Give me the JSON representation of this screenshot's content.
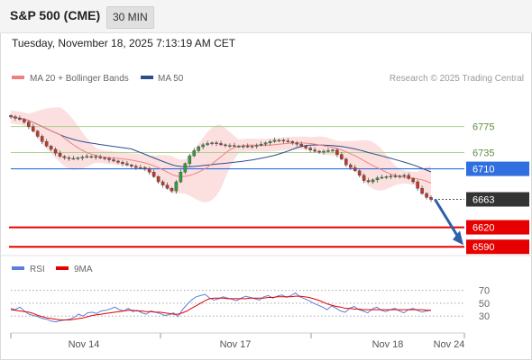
{
  "header": {
    "title": "S&P 500 (CME)",
    "interval": "30 MIN",
    "timestamp": "Tuesday, November 18, 2025 7:13:19 AM CET"
  },
  "legend": {
    "ma20_label": "MA 20 + Bollinger Bands",
    "ma50_label": "MA 50",
    "ma20_color": "#f08080",
    "ma50_color": "#2d4d8c",
    "credit": "Research © 2025 Trading Central"
  },
  "chart_data": [
    {
      "type": "line",
      "name": "price",
      "x_labels": [
        "Nov 14",
        "Nov 17",
        "Nov 18",
        "Nov 24"
      ],
      "ylim": [
        6582,
        6841
      ],
      "close_series": [
        6790,
        6788,
        6786,
        6782,
        6775,
        6768,
        6760,
        6752,
        6745,
        6740,
        6734,
        6729,
        6727,
        6726,
        6726,
        6727,
        6728,
        6729,
        6729,
        6728,
        6727,
        6726,
        6724,
        6722,
        6720,
        6718,
        6716,
        6714,
        6712,
        6712,
        6710,
        6705,
        6698,
        6690,
        6685,
        6680,
        6676,
        6690,
        6705,
        6718,
        6730,
        6738,
        6744,
        6747,
        6749,
        6750,
        6749,
        6747,
        6746,
        6746,
        6745,
        6745,
        6745,
        6744,
        6745,
        6746,
        6748,
        6750,
        6752,
        6754,
        6754,
        6753,
        6752,
        6750,
        6748,
        6745,
        6742,
        6739,
        6737,
        6736,
        6737,
        6738,
        6739,
        6732,
        6725,
        6716,
        6712,
        6707,
        6700,
        6692,
        6690,
        6693,
        6696,
        6697,
        6698,
        6699,
        6698,
        6699,
        6700,
        6695,
        6690,
        6680,
        6672,
        6666,
        6663
      ],
      "price_lines": [
        {
          "value": 6775,
          "label": "6775",
          "color": "#a9d18e",
          "style": "light"
        },
        {
          "value": 6735,
          "label": "6735",
          "color": "#a9d18e",
          "style": "light"
        },
        {
          "value": 6710,
          "label": "6710",
          "color": "#2f6fe0",
          "style": "pivot"
        },
        {
          "value": 6663,
          "label": "6663",
          "color": "#333333",
          "style": "last"
        },
        {
          "value": 6620,
          "label": "6620",
          "color": "#e60000",
          "style": "support"
        },
        {
          "value": 6590,
          "label": "6590",
          "color": "#e60000",
          "style": "support"
        }
      ],
      "forecast_arrow": {
        "from": 6663,
        "to": 6590,
        "color": "#2e5fa8"
      }
    },
    {
      "type": "line",
      "name": "rsi",
      "legend": [
        {
          "label": "RSI",
          "color": "#5b7fd6"
        },
        {
          "label": "9MA",
          "color": "#e60000"
        }
      ],
      "ylim": [
        5,
        85
      ],
      "y_ticks": [
        70,
        50,
        30
      ],
      "rsi_series": [
        42,
        40,
        44,
        38,
        33,
        31,
        29,
        26,
        25,
        22,
        21,
        23,
        24,
        25,
        28,
        33,
        30,
        35,
        36,
        34,
        38,
        39,
        41,
        44,
        40,
        38,
        42,
        37,
        39,
        35,
        33,
        38,
        36,
        34,
        31,
        32,
        35,
        29,
        40,
        48,
        55,
        60,
        62,
        64,
        58,
        55,
        57,
        60,
        58,
        56,
        54,
        58,
        61,
        59,
        57,
        55,
        60,
        62,
        58,
        61,
        63,
        59,
        62,
        66,
        60,
        57,
        54,
        50,
        47,
        44,
        40,
        46,
        42,
        38,
        36,
        42,
        45,
        40,
        38,
        35,
        41,
        44,
        39,
        37,
        40,
        42,
        38,
        35,
        40,
        42,
        39,
        36,
        38,
        39
      ],
      "ma9_series": [
        40,
        39,
        38,
        37,
        36,
        34,
        31,
        29,
        27,
        26,
        25,
        24,
        24,
        24,
        25,
        26,
        27,
        29,
        31,
        32,
        33,
        34,
        35,
        36,
        37,
        38,
        39,
        39,
        38,
        38,
        37,
        37,
        36,
        36,
        35,
        34,
        33,
        33,
        35,
        38,
        42,
        46,
        50,
        54,
        57,
        58,
        58,
        58,
        57,
        57,
        57,
        57,
        57,
        58,
        58,
        58,
        58,
        59,
        59,
        60,
        60,
        60,
        60,
        61,
        61,
        60,
        59,
        57,
        55,
        52,
        49,
        47,
        45,
        44,
        42,
        42,
        41,
        41,
        40,
        40,
        40,
        40,
        40,
        40,
        40,
        40,
        40,
        40,
        40,
        40,
        40,
        40,
        39,
        39
      ]
    }
  ]
}
